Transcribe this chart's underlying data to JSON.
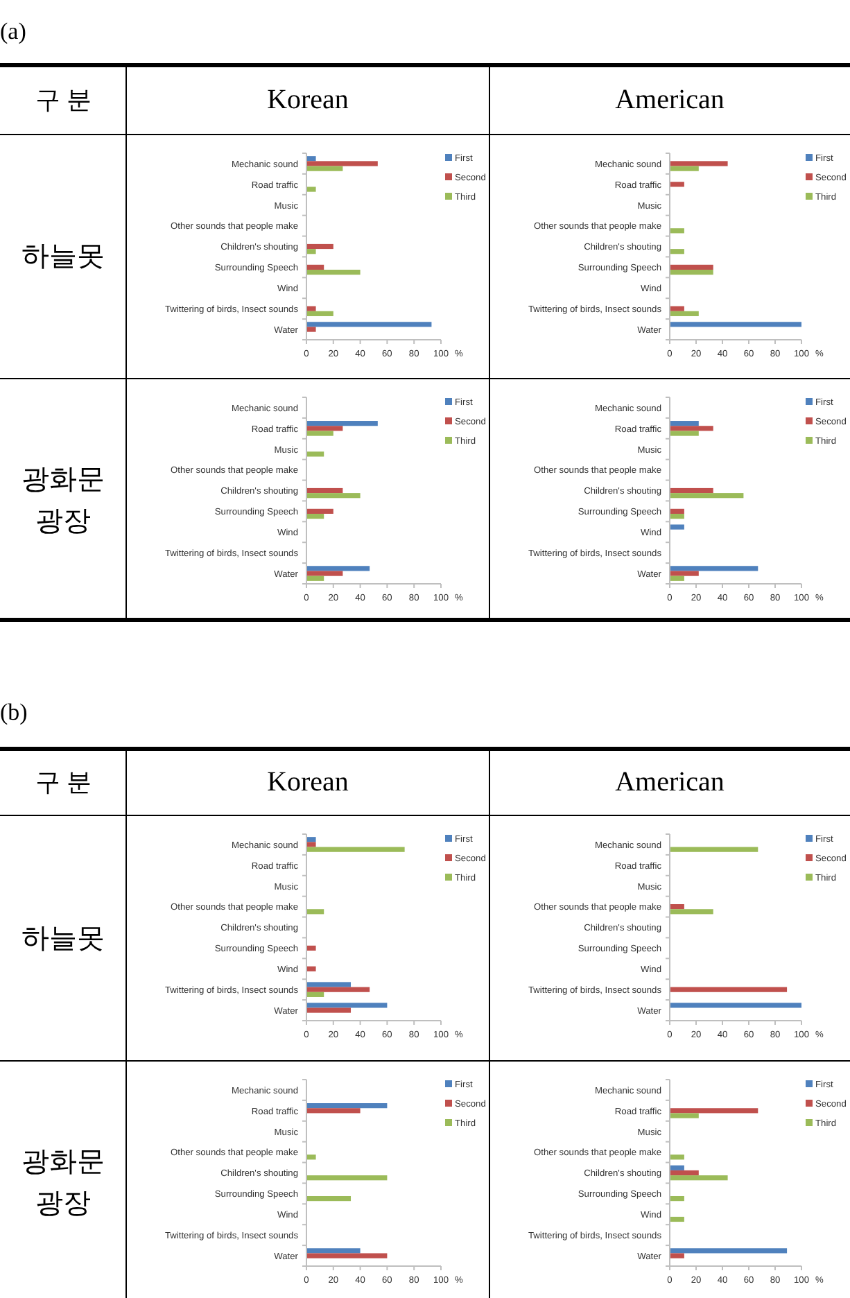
{
  "chart_data": [
    {
      "type": "bar",
      "orientation": "horizontal",
      "annotations": [
        "(a)",
        "구 분",
        "Korean",
        "하늘못"
      ],
      "categories": [
        "Mechanic sound",
        "Road traffic",
        "Music",
        "Other sounds that people make",
        "Children's shouting",
        "Surrounding Speech",
        "Wind",
        "Twittering of birds, Insect sounds",
        "Water"
      ],
      "xlim": [
        0,
        100
      ],
      "xticks": [
        0,
        20,
        40,
        60,
        80,
        100
      ],
      "xlabel": "%",
      "legend": "top right",
      "series": [
        {
          "name": "First",
          "color": "#4f81bd",
          "values": [
            7,
            null,
            null,
            null,
            null,
            null,
            null,
            null,
            93
          ]
        },
        {
          "name": "Second",
          "color": "#c0504d",
          "values": [
            53,
            null,
            null,
            null,
            20,
            13,
            null,
            7,
            7
          ]
        },
        {
          "name": "Third",
          "color": "#9bbb59",
          "values": [
            27,
            7,
            null,
            null,
            7,
            40,
            null,
            20,
            null
          ]
        }
      ]
    },
    {
      "type": "bar",
      "orientation": "horizontal",
      "annotations": [
        "American"
      ],
      "categories": [
        "Mechanic sound",
        "Road traffic",
        "Music",
        "Other sounds that people make",
        "Children's shouting",
        "Surrounding Speech",
        "Wind",
        "Twittering of birds, Insect sounds",
        "Water"
      ],
      "xlim": [
        0,
        100
      ],
      "xticks": [
        0,
        20,
        40,
        60,
        80,
        100
      ],
      "xlabel": "%",
      "legend": "top right",
      "series": [
        {
          "name": "First",
          "color": "#4f81bd",
          "values": [
            null,
            null,
            null,
            null,
            null,
            null,
            null,
            null,
            100
          ]
        },
        {
          "name": "Second",
          "color": "#c0504d",
          "values": [
            44,
            11,
            null,
            null,
            null,
            33,
            null,
            11,
            null
          ]
        },
        {
          "name": "Third",
          "color": "#9bbb59",
          "values": [
            22,
            null,
            null,
            11,
            11,
            33,
            null,
            22,
            null
          ]
        }
      ]
    },
    {
      "type": "bar",
      "orientation": "horizontal",
      "annotations": [
        "광화문 광장"
      ],
      "categories": [
        "Mechanic sound",
        "Road traffic",
        "Music",
        "Other sounds that people make",
        "Children's shouting",
        "Surrounding Speech",
        "Wind",
        "Twittering of birds, Insect sounds",
        "Water"
      ],
      "xlim": [
        0,
        100
      ],
      "xticks": [
        0,
        20,
        40,
        60,
        80,
        100
      ],
      "xlabel": "%",
      "legend": "top right",
      "series": [
        {
          "name": "First",
          "color": "#4f81bd",
          "values": [
            null,
            53,
            null,
            null,
            null,
            null,
            null,
            null,
            47
          ]
        },
        {
          "name": "Second",
          "color": "#c0504d",
          "values": [
            null,
            27,
            null,
            null,
            27,
            20,
            null,
            null,
            27
          ]
        },
        {
          "name": "Third",
          "color": "#9bbb59",
          "values": [
            null,
            20,
            13,
            null,
            40,
            13,
            null,
            null,
            13
          ]
        }
      ]
    },
    {
      "type": "bar",
      "orientation": "horizontal",
      "categories": [
        "Mechanic sound",
        "Road traffic",
        "Music",
        "Other sounds that people make",
        "Children's shouting",
        "Surrounding Speech",
        "Wind",
        "Twittering of birds, Insect sounds",
        "Water"
      ],
      "xlim": [
        0,
        100
      ],
      "xticks": [
        0,
        20,
        40,
        60,
        80,
        100
      ],
      "xlabel": "%",
      "legend": "top right",
      "series": [
        {
          "name": "First",
          "color": "#4f81bd",
          "values": [
            null,
            22,
            null,
            null,
            null,
            null,
            11,
            null,
            67
          ]
        },
        {
          "name": "Second",
          "color": "#c0504d",
          "values": [
            null,
            33,
            null,
            null,
            33,
            11,
            null,
            null,
            22
          ]
        },
        {
          "name": "Third",
          "color": "#9bbb59",
          "values": [
            null,
            22,
            null,
            null,
            56,
            11,
            null,
            null,
            11
          ]
        }
      ]
    },
    {
      "type": "bar",
      "orientation": "horizontal",
      "annotations": [
        "(b)",
        "구 분",
        "Korean",
        "하늘못"
      ],
      "categories": [
        "Mechanic sound",
        "Road traffic",
        "Music",
        "Other sounds that people make",
        "Children's shouting",
        "Surrounding Speech",
        "Wind",
        "Twittering of birds, Insect sounds",
        "Water"
      ],
      "xlim": [
        0,
        100
      ],
      "xticks": [
        0,
        20,
        40,
        60,
        80,
        100
      ],
      "xlabel": "%",
      "legend": "top right",
      "series": [
        {
          "name": "First",
          "color": "#4f81bd",
          "values": [
            7,
            null,
            null,
            null,
            null,
            null,
            null,
            33,
            60
          ]
        },
        {
          "name": "Second",
          "color": "#c0504d",
          "values": [
            7,
            null,
            null,
            null,
            null,
            7,
            7,
            47,
            33
          ]
        },
        {
          "name": "Third",
          "color": "#9bbb59",
          "values": [
            73,
            null,
            null,
            13,
            null,
            null,
            null,
            13,
            null
          ]
        }
      ]
    },
    {
      "type": "bar",
      "orientation": "horizontal",
      "annotations": [
        "American"
      ],
      "categories": [
        "Mechanic sound",
        "Road traffic",
        "Music",
        "Other sounds that people make",
        "Children's shouting",
        "Surrounding Speech",
        "Wind",
        "Twittering of birds, Insect sounds",
        "Water"
      ],
      "xlim": [
        0,
        100
      ],
      "xticks": [
        0,
        20,
        40,
        60,
        80,
        100
      ],
      "xlabel": "%",
      "legend": "top right",
      "series": [
        {
          "name": "First",
          "color": "#4f81bd",
          "values": [
            null,
            null,
            null,
            null,
            null,
            null,
            null,
            null,
            100
          ]
        },
        {
          "name": "Second",
          "color": "#c0504d",
          "values": [
            null,
            null,
            null,
            11,
            null,
            null,
            null,
            89,
            null
          ]
        },
        {
          "name": "Third",
          "color": "#9bbb59",
          "values": [
            67,
            null,
            null,
            33,
            null,
            null,
            null,
            null,
            null
          ]
        }
      ]
    },
    {
      "type": "bar",
      "orientation": "horizontal",
      "annotations": [
        "광화문 광장"
      ],
      "categories": [
        "Mechanic sound",
        "Road traffic",
        "Music",
        "Other sounds that people make",
        "Children's shouting",
        "Surrounding Speech",
        "Wind",
        "Twittering of birds, Insect sounds",
        "Water"
      ],
      "xlim": [
        0,
        100
      ],
      "xticks": [
        0,
        20,
        40,
        60,
        80,
        100
      ],
      "xlabel": "%",
      "legend": "top right",
      "series": [
        {
          "name": "First",
          "color": "#4f81bd",
          "values": [
            null,
            60,
            null,
            null,
            null,
            null,
            null,
            null,
            40
          ]
        },
        {
          "name": "Second",
          "color": "#c0504d",
          "values": [
            null,
            40,
            null,
            null,
            null,
            null,
            null,
            null,
            60
          ]
        },
        {
          "name": "Third",
          "color": "#9bbb59",
          "values": [
            null,
            null,
            null,
            7,
            60,
            33,
            null,
            null,
            null
          ]
        }
      ]
    },
    {
      "type": "bar",
      "orientation": "horizontal",
      "categories": [
        "Mechanic sound",
        "Road traffic",
        "Music",
        "Other sounds that people make",
        "Children's shouting",
        "Surrounding Speech",
        "Wind",
        "Twittering of birds, Insect sounds",
        "Water"
      ],
      "xlim": [
        0,
        100
      ],
      "xticks": [
        0,
        20,
        40,
        60,
        80,
        100
      ],
      "xlabel": "%",
      "legend": "top right",
      "series": [
        {
          "name": "First",
          "color": "#4f81bd",
          "values": [
            null,
            null,
            null,
            null,
            11,
            null,
            null,
            null,
            89
          ]
        },
        {
          "name": "Second",
          "color": "#c0504d",
          "values": [
            null,
            67,
            null,
            null,
            22,
            null,
            null,
            null,
            11
          ]
        },
        {
          "name": "Third",
          "color": "#9bbb59",
          "values": [
            null,
            22,
            null,
            11,
            44,
            11,
            11,
            null,
            null
          ]
        }
      ]
    }
  ]
}
